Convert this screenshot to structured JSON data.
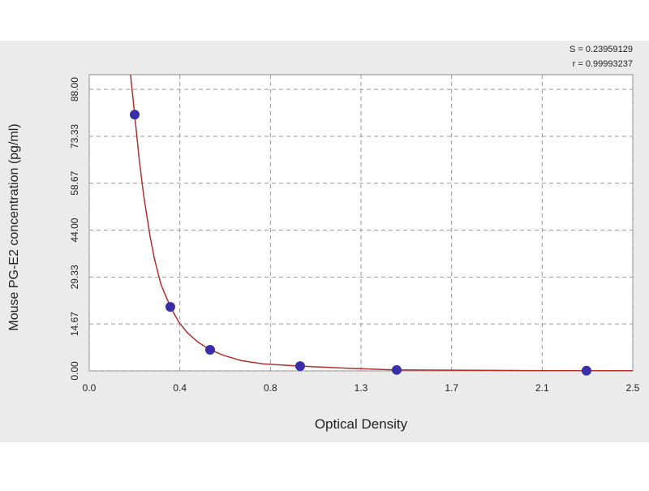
{
  "chart_data": {
    "type": "scatter",
    "xlabel": "Optical Density",
    "ylabel": "Mouse PG-E2 concentration (pg/ml)",
    "annotations": [
      "S = 0.23959129",
      "r = 0.99993237"
    ],
    "xlim": [
      0,
      2.5
    ],
    "ylim": [
      0,
      92.6
    ],
    "xticks": [
      {
        "value": 0,
        "label": "0.0"
      },
      {
        "value": 0.4167,
        "label": "0.4"
      },
      {
        "value": 0.8333,
        "label": "0.8"
      },
      {
        "value": 1.25,
        "label": "1.3"
      },
      {
        "value": 1.6667,
        "label": "1.7"
      },
      {
        "value": 2.0833,
        "label": "2.1"
      },
      2.5
    ],
    "yticks": [
      {
        "value": 0,
        "label": "0.00"
      },
      14.67,
      29.33,
      {
        "value": 44,
        "label": "44.00"
      },
      58.67,
      73.33,
      {
        "value": 88,
        "label": "88.00"
      }
    ],
    "grid": true,
    "points": {
      "color": "#3a2fa8",
      "x": [
        0.209,
        0.373,
        0.556,
        0.97,
        1.414,
        2.287
      ],
      "y": [
        80.1,
        20.0,
        6.6,
        1.5,
        0.3,
        0.05
      ]
    },
    "curve": {
      "color": "#b03030",
      "x": [
        0.19,
        0.209,
        0.23,
        0.25,
        0.28,
        0.3,
        0.33,
        0.373,
        0.41,
        0.45,
        0.5,
        0.556,
        0.62,
        0.7,
        0.8,
        0.97,
        1.2,
        1.414,
        2.0,
        2.5
      ],
      "y": [
        92.6,
        80.1,
        66,
        55,
        42,
        35,
        27,
        20.0,
        15.5,
        12,
        9,
        6.6,
        4.8,
        3.2,
        2.2,
        1.5,
        0.8,
        0.3,
        0.1,
        0.05
      ]
    }
  }
}
